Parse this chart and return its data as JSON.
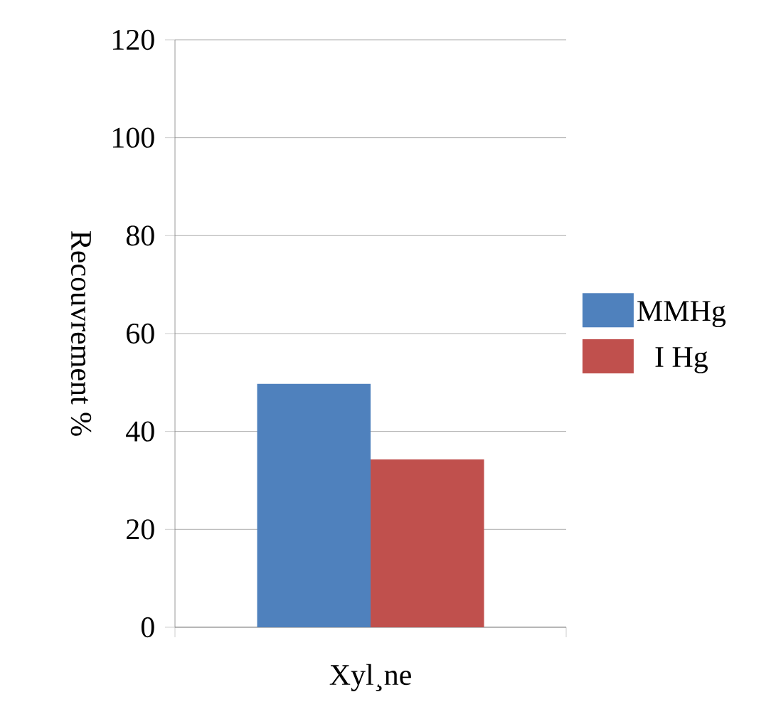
{
  "chart_data": {
    "type": "bar",
    "categories": [
      "Xyl¸ne"
    ],
    "ylabel": "Recouvrement %",
    "series": [
      {
        "name": "MMHg",
        "color": "#4f81bd",
        "values": [
          49.7
        ]
      },
      {
        "name": "I Hg",
        "color": "#c0504d",
        "values": [
          34.3
        ]
      }
    ],
    "ylim": [
      0,
      120
    ],
    "yticks": [
      0,
      20,
      40,
      60,
      80,
      100,
      120
    ],
    "grid": "y",
    "legend": "right"
  }
}
